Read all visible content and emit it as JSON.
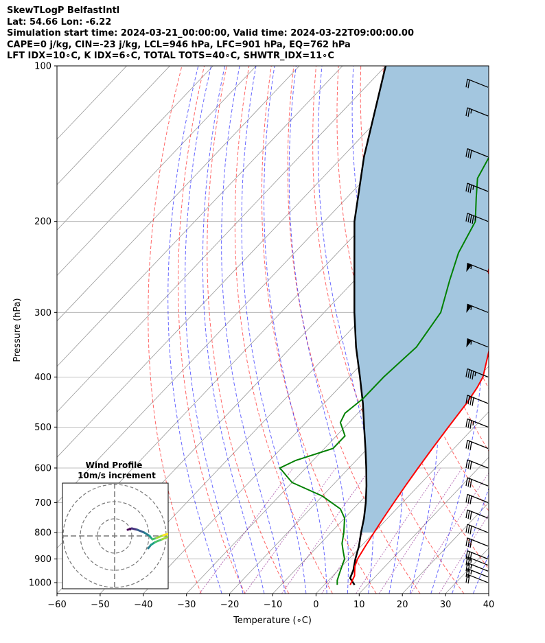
{
  "header": {
    "line1": "SkewTLogP BelfastIntl",
    "line2": "Lat: 54.66   Lon: -6.22",
    "line3": "Simulation start time: 2024-03-21_00:00:00, Valid time: 2024-03-22T09:00:00.00",
    "line4": "CAPE=0 j/kg, CIN=-23 j/kg, LCL=946 hPa, LFC=901 hPa, EQ=762 hPa",
    "line5": "LFT IDX=10∘C, K IDX=6∘C, TOTAL TOTS=40∘C, SHWTR_IDX=11∘C"
  },
  "chart_data": {
    "type": "skewt",
    "xlabel": "Temperature (∘C)",
    "ylabel": "Pressure (hPa)",
    "xlim": [
      -60,
      40
    ],
    "ylim": [
      1050,
      100
    ],
    "x_ticks": [
      -60,
      -50,
      -40,
      -30,
      -20,
      -10,
      0,
      10,
      20,
      30,
      40
    ],
    "x_tick_labels": [
      "−60",
      "−50",
      "−40",
      "−30",
      "−20",
      "−10",
      "0",
      "10",
      "20",
      "30",
      "40"
    ],
    "y_ticks": [
      1000,
      900,
      800,
      700,
      600,
      500,
      400,
      300,
      200,
      100
    ],
    "grid": true,
    "temperature": {
      "color": "#ff0000",
      "p": [
        1010,
        970,
        930,
        900,
        850,
        800,
        750,
        700,
        650,
        600,
        550,
        500,
        450,
        420,
        400,
        350,
        300,
        270,
        250,
        230,
        210,
        190,
        170,
        150,
        130,
        115,
        100
      ],
      "t": [
        6,
        5,
        3,
        2,
        1,
        0,
        -1,
        -2,
        -3,
        -4,
        -5,
        -6,
        -7,
        -8,
        -9,
        -14,
        -21,
        -26,
        -31,
        -34,
        -37,
        -42,
        -48,
        -55,
        -61,
        -65,
        -69
      ]
    },
    "dewpoint": {
      "color": "#008000",
      "p": [
        1010,
        990,
        960,
        930,
        900,
        870,
        840,
        800,
        750,
        720,
        680,
        640,
        600,
        580,
        550,
        520,
        490,
        470,
        440,
        400,
        350,
        300,
        260,
        230,
        200,
        180,
        165,
        150,
        130,
        115,
        100
      ],
      "td": [
        3,
        2,
        1,
        0,
        -1,
        -3,
        -5,
        -7,
        -10,
        -13,
        -20,
        -30,
        -36,
        -34,
        -28,
        -28,
        -32,
        -33,
        -32,
        -32,
        -31,
        -33,
        -38,
        -42,
        -45,
        -50,
        -54,
        -56,
        -58,
        -60,
        -63
      ]
    },
    "parcel": {
      "color": "#000000",
      "p": [
        1010,
        980,
        946,
        900,
        850,
        800,
        750,
        700,
        650,
        600,
        550,
        500,
        450,
        400,
        350,
        300,
        250,
        200,
        150,
        100
      ],
      "t": [
        7,
        4.5,
        3.5,
        1.5,
        -0.5,
        -3,
        -5.5,
        -8.5,
        -12,
        -16,
        -20.5,
        -25.5,
        -31,
        -37.5,
        -45,
        -53,
        -62,
        -73,
        -85,
        -100
      ]
    },
    "cin_fill_color": "#a3c6df",
    "dry_adiabats_color": "#ff0000",
    "moist_adiabats_color": "#0000ff",
    "mixing_ratio_color": "#800080",
    "wind_barbs": {
      "p": [
        1000,
        975,
        950,
        925,
        900,
        850,
        800,
        750,
        700,
        650,
        600,
        550,
        500,
        450,
        400,
        350,
        300,
        250,
        200,
        175,
        150,
        125,
        110
      ],
      "speed_kt": [
        20,
        25,
        25,
        25,
        30,
        30,
        30,
        30,
        30,
        30,
        30,
        30,
        35,
        40,
        45,
        55,
        55,
        55,
        45,
        35,
        30,
        25,
        20
      ]
    },
    "hodograph": {
      "title": "Wind Profile",
      "subtitle": "10m/s increment"
    }
  }
}
